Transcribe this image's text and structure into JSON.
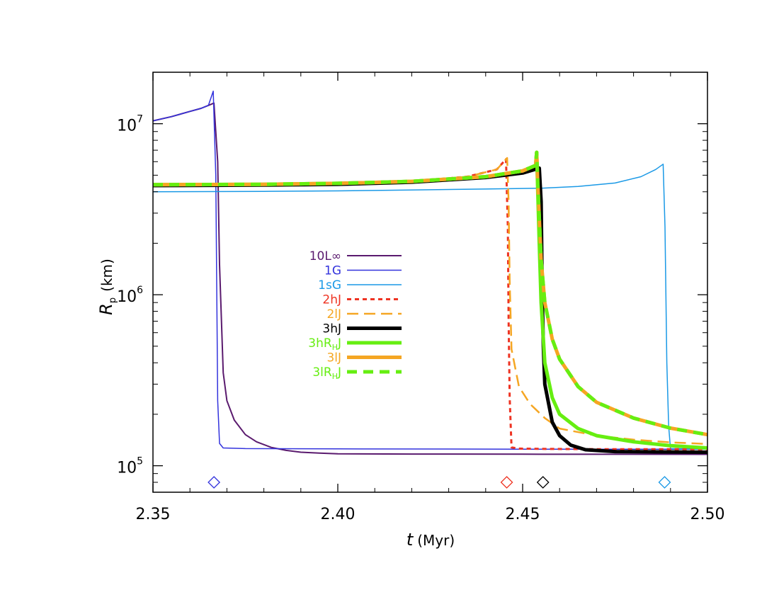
{
  "chart_data": {
    "type": "line",
    "xlabel": "t",
    "xlabel_unit": "(Myr)",
    "ylabel": "R",
    "ylabel_sub": "p",
    "ylabel_unit": "(km)",
    "xlim": [
      2.35,
      2.5
    ],
    "ylim": [
      70000,
      20000000
    ],
    "yscale": "log",
    "grid": false,
    "legend_position": "center-left",
    "x_ticks": [
      {
        "value": 2.35,
        "label": "2.35"
      },
      {
        "value": 2.4,
        "label": "2.40"
      },
      {
        "value": 2.45,
        "label": "2.45"
      },
      {
        "value": 2.5,
        "label": "2.50"
      }
    ],
    "y_ticks": [
      {
        "value": 100000,
        "base": "10",
        "exp": "5"
      },
      {
        "value": 1000000,
        "base": "10",
        "exp": "6"
      },
      {
        "value": 10000000,
        "base": "10",
        "exp": "7"
      }
    ],
    "series": [
      {
        "name": "10L∞",
        "name_base": "10L∞",
        "name_sub": "",
        "name_tail": "",
        "color": "#5a1a6e",
        "width": 2,
        "dash": "",
        "x": [
          2.35,
          2.355,
          2.36,
          2.363,
          2.365,
          2.3665,
          2.3675,
          2.368,
          2.369,
          2.37,
          2.372,
          2.375,
          2.378,
          2.382,
          2.386,
          2.39,
          2.395,
          2.4,
          2.42,
          2.45,
          2.5
        ],
        "y": [
          10400000,
          11000000,
          11800000,
          12300000,
          12800000,
          13200000,
          6000000,
          1500000,
          350000,
          240000,
          185000,
          152000,
          138000,
          128000,
          123000,
          120000,
          118500,
          117500,
          117000,
          116800,
          116600
        ]
      },
      {
        "name": "1G",
        "name_base": "1G",
        "name_sub": "",
        "name_tail": "",
        "color": "#3333dd",
        "width": 1.5,
        "dash": "",
        "x": [
          2.35,
          2.355,
          2.36,
          2.363,
          2.365,
          2.3663,
          2.367,
          2.3675,
          2.368,
          2.369,
          2.375,
          2.4,
          2.45,
          2.5
        ],
        "y": [
          10400000,
          11000000,
          11800000,
          12300000,
          12800000,
          15500000,
          5000000,
          240000,
          135000,
          127000,
          126000,
          125500,
          125000,
          125000
        ]
      },
      {
        "name": "1sG",
        "name_base": "1sG",
        "name_sub": "",
        "name_tail": "",
        "color": "#1a99e6",
        "width": 1.5,
        "dash": "",
        "x": [
          2.35,
          2.38,
          2.4,
          2.42,
          2.44,
          2.455,
          2.465,
          2.475,
          2.482,
          2.486,
          2.488,
          2.4885,
          2.489,
          2.4895,
          2.49,
          2.5
        ],
        "y": [
          4000000,
          4020000,
          4050000,
          4100000,
          4150000,
          4200000,
          4300000,
          4500000,
          4900000,
          5400000,
          5800000,
          2500000,
          400000,
          170000,
          126000,
          125000
        ]
      },
      {
        "name": "2hJ",
        "name_base": "2hJ",
        "name_sub": "",
        "name_tail": "",
        "color": "#ee3322",
        "width": 3,
        "dash": "6,5",
        "x": [
          2.35,
          2.38,
          2.4,
          2.42,
          2.435,
          2.443,
          2.4455,
          2.446,
          2.4462,
          2.4465,
          2.447,
          2.449,
          2.455,
          2.47,
          2.5
        ],
        "y": [
          4400000,
          4420000,
          4480000,
          4600000,
          4900000,
          5400000,
          6200000,
          2500000,
          700000,
          250000,
          128000,
          126000,
          125500,
          125000,
          125000
        ]
      },
      {
        "name": "2lJ",
        "name_base": "2lJ",
        "name_sub": "",
        "name_tail": "",
        "color": "#f5a623",
        "width": 2.5,
        "dash": "16,8",
        "x": [
          2.35,
          2.38,
          2.4,
          2.42,
          2.435,
          2.443,
          2.4458,
          2.4462,
          2.4465,
          2.447,
          2.449,
          2.452,
          2.456,
          2.46,
          2.47,
          2.48,
          2.49,
          2.5
        ],
        "y": [
          4400000,
          4420000,
          4480000,
          4600000,
          4900000,
          5400000,
          6300000,
          3500000,
          1200000,
          480000,
          290000,
          230000,
          190000,
          165000,
          150000,
          142000,
          137000,
          134000
        ]
      },
      {
        "name": "3hJ",
        "name_base": "3hJ",
        "name_sub": "",
        "name_tail": "",
        "color": "#000000",
        "width": 5,
        "dash": "",
        "x": [
          2.35,
          2.38,
          2.4,
          2.42,
          2.44,
          2.45,
          2.4545,
          2.455,
          2.4553,
          2.4556,
          2.456,
          2.458,
          2.46,
          2.463,
          2.467,
          2.475,
          2.5
        ],
        "y": [
          4350000,
          4380000,
          4420000,
          4550000,
          4850000,
          5150000,
          5500000,
          3500000,
          1000000,
          500000,
          300000,
          180000,
          150000,
          132000,
          124000,
          121000,
          120000
        ]
      },
      {
        "name": "3hR_HJ",
        "name_base": "3hR",
        "name_sub": "H",
        "name_tail": "J",
        "color": "#66ee11",
        "width": 5,
        "dash": "",
        "x": [
          2.35,
          2.38,
          2.4,
          2.42,
          2.44,
          2.45,
          2.4535,
          2.4538,
          2.4541,
          2.4545,
          2.455,
          2.456,
          2.458,
          2.46,
          2.465,
          2.47,
          2.48,
          2.49,
          2.5
        ],
        "y": [
          4400000,
          4420000,
          4480000,
          4600000,
          4900000,
          5300000,
          5700000,
          6800000,
          4000000,
          2000000,
          900000,
          400000,
          250000,
          200000,
          165000,
          150000,
          138000,
          131000,
          127000
        ]
      },
      {
        "name": "3lJ",
        "name_base": "3lJ",
        "name_sub": "",
        "name_tail": "",
        "color": "#f5a623",
        "width": 5,
        "dash": "",
        "x": [
          2.35,
          2.38,
          2.4,
          2.42,
          2.44,
          2.45,
          2.4535,
          2.4538,
          2.4541,
          2.4545,
          2.455,
          2.456,
          2.458,
          2.46,
          2.465,
          2.47,
          2.48,
          2.49,
          2.5
        ],
        "y": [
          4400000,
          4420000,
          4480000,
          4600000,
          4900000,
          5300000,
          5700000,
          6800000,
          4500000,
          2800000,
          1600000,
          900000,
          550000,
          420000,
          290000,
          235000,
          190000,
          166000,
          152000
        ]
      },
      {
        "name": "3lR_HJ",
        "name_base": "3lR",
        "name_sub": "H",
        "name_tail": "J",
        "color": "#66ee11",
        "width": 5,
        "dash": "14,9",
        "x": [
          2.35,
          2.38,
          2.4,
          2.42,
          2.44,
          2.45,
          2.4535,
          2.4538,
          2.4541,
          2.4545,
          2.455,
          2.456,
          2.458,
          2.46,
          2.465,
          2.47,
          2.48,
          2.49,
          2.5
        ],
        "y": [
          4400000,
          4420000,
          4480000,
          4600000,
          4900000,
          5300000,
          5700000,
          6800000,
          4500000,
          2800000,
          1600000,
          900000,
          550000,
          420000,
          290000,
          235000,
          190000,
          166000,
          152000
        ]
      }
    ],
    "markers": [
      {
        "x": 2.3665,
        "y": 80000,
        "color": "#3333dd",
        "shape": "diamond"
      },
      {
        "x": 2.4457,
        "y": 80000,
        "color": "#ee3322",
        "shape": "diamond"
      },
      {
        "x": 2.4555,
        "y": 80000,
        "color": "#000000",
        "shape": "diamond"
      },
      {
        "x": 2.4884,
        "y": 80000,
        "color": "#1a99e6",
        "shape": "diamond"
      }
    ]
  }
}
